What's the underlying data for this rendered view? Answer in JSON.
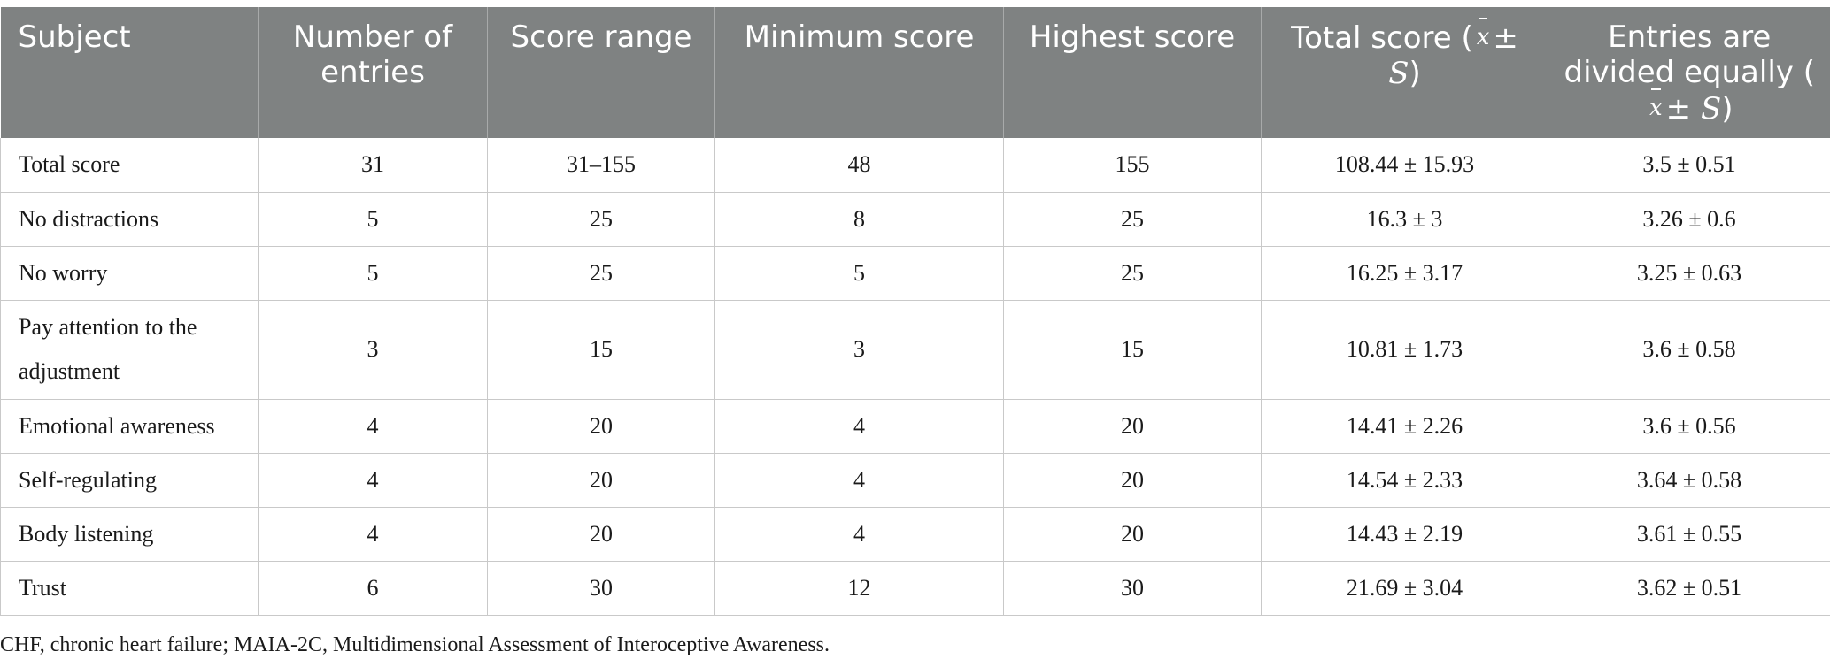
{
  "table": {
    "headers": [
      "Subject",
      "Number of entries",
      "Score range",
      "Minimum score",
      "Highest score"
    ],
    "header_total": {
      "prefix": "Total score (",
      "xbar": "x",
      "pm": "±",
      "s": "S",
      "suffix": ")"
    },
    "header_entries": {
      "prefix": "Entries are divided equally (",
      "xbar": "x",
      "pm": "±",
      "s": "S",
      "suffix": ")"
    },
    "rows": [
      [
        "Total score",
        "31",
        "31–155",
        "48",
        "155",
        "108.44 ± 15.93",
        "3.5 ± 0.51"
      ],
      [
        "No distractions",
        "5",
        "25",
        "8",
        "25",
        "16.3 ± 3",
        "3.26 ± 0.6"
      ],
      [
        "No worry",
        "5",
        "25",
        "5",
        "25",
        "16.25 ± 3.17",
        "3.25 ± 0.63"
      ],
      [
        "Pay attention to the adjustment",
        "3",
        "15",
        "3",
        "15",
        "10.81 ± 1.73",
        "3.6 ± 0.58"
      ],
      [
        "Emotional awareness",
        "4",
        "20",
        "4",
        "20",
        "14.41 ± 2.26",
        "3.6 ± 0.56"
      ],
      [
        "Self-regulating",
        "4",
        "20",
        "4",
        "20",
        "14.54 ± 2.33",
        "3.64 ± 0.58"
      ],
      [
        "Body listening",
        "4",
        "20",
        "4",
        "20",
        "14.43 ± 2.19",
        "3.61 ± 0.55"
      ],
      [
        "Trust",
        "6",
        "30",
        "12",
        "30",
        "21.69 ± 3.04",
        "3.62 ± 0.51"
      ]
    ]
  },
  "footnote": "CHF, chronic heart failure; MAIA-2C, Multidimensional Assessment of Interoceptive Awareness.",
  "colors": {
    "header_bg": "#7f8282",
    "header_text": "#ffffff",
    "border": "#c9c9c9"
  }
}
